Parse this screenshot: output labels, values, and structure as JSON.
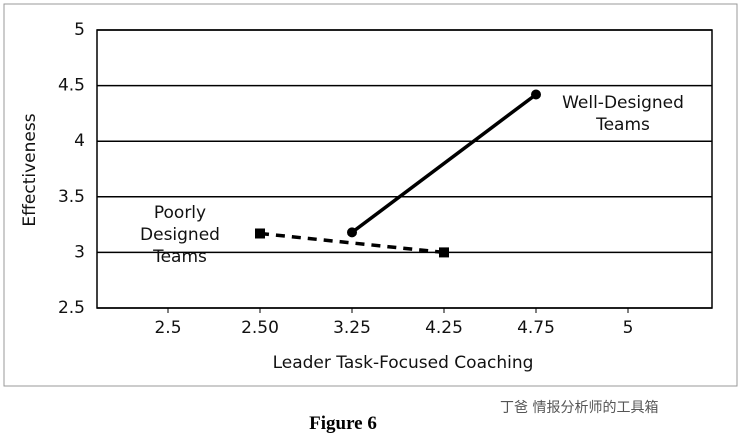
{
  "chart_data": {
    "type": "line",
    "xlabel": "Leader Task-Focused Coaching",
    "ylabel": "Effectiveness",
    "caption": "Figure 6",
    "watermark": "丁爸 情报分析师的工具箱",
    "categories": [
      "2.5",
      "2.50",
      "3.25",
      "4.25",
      "4.75",
      "5"
    ],
    "series": [
      {
        "name": "Poorly Designed Teams",
        "color": "#000000",
        "style": "dashed",
        "marker": "square",
        "x": [
          "2.50",
          "4.25"
        ],
        "values": [
          3.17,
          3.0
        ]
      },
      {
        "name": "Well-Designed Teams",
        "color": "#000000",
        "style": "solid",
        "marker": "circle",
        "x": [
          "3.25",
          "4.75"
        ],
        "values": [
          3.18,
          4.42
        ]
      }
    ],
    "ylim": [
      2.5,
      5
    ],
    "yticks": [
      2.5,
      3,
      3.5,
      4,
      4.5,
      5
    ],
    "grid": true
  }
}
